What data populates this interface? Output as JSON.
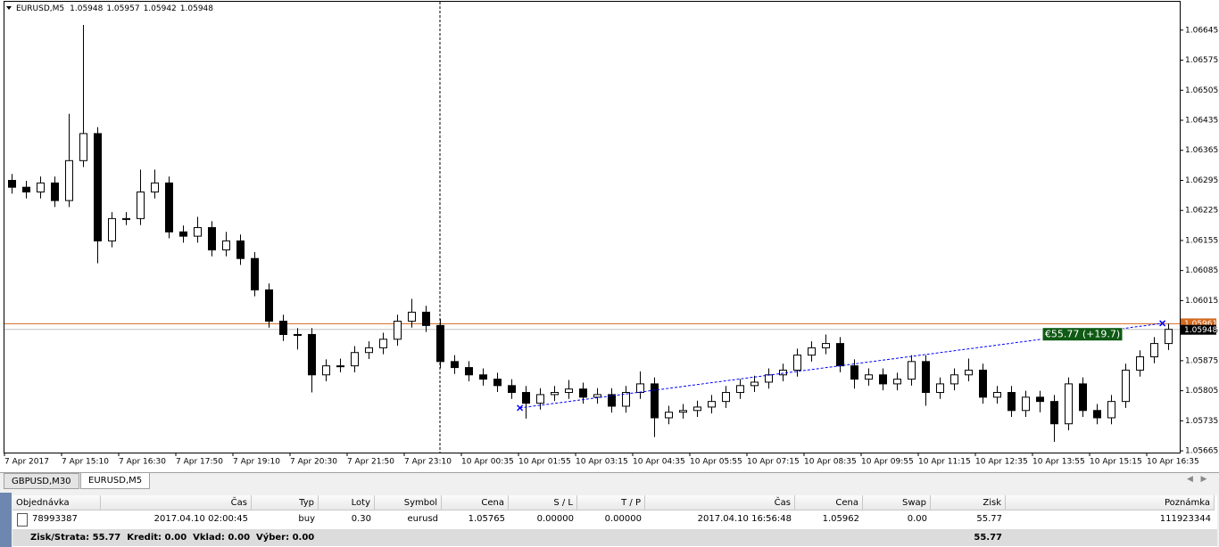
{
  "chart_data": {
    "type": "candlestick",
    "symbol": "EURUSD,M5",
    "quote": {
      "open": 1.05948,
      "high": 1.05957,
      "low": 1.05942,
      "close": 1.05948
    },
    "open": [
      1.06295,
      1.06279,
      1.06268,
      1.06289,
      1.06248,
      1.06341,
      1.06404,
      1.06154,
      1.06206,
      1.06206,
      1.06268,
      1.06289,
      1.06175,
      1.06165,
      1.06185,
      1.06133,
      1.06154,
      1.06113,
      1.0604,
      1.05967,
      1.05936,
      1.05936,
      1.05842,
      1.05863,
      1.05863,
      1.05894,
      1.05905,
      1.05925,
      1.05967,
      1.05988,
      1.05957,
      1.05873,
      1.05859,
      1.05842,
      1.05832,
      1.05817,
      1.05801,
      1.05776,
      1.05796,
      1.05801,
      1.05809,
      1.0579,
      1.05796,
      1.05769,
      1.05801,
      1.05821,
      1.05742,
      1.05755,
      1.05759,
      1.05767,
      1.0578,
      1.05801,
      1.05817,
      1.05825,
      1.05842,
      1.05853,
      1.05888,
      1.05905,
      1.05915,
      1.05863,
      1.05832,
      1.05842,
      1.05821,
      1.05832,
      1.05873,
      1.05801,
      1.05821,
      1.05842,
      1.05853,
      1.0579,
      1.05801,
      1.05759,
      1.0579,
      1.0578,
      1.05728,
      1.05821,
      1.05759,
      1.05742,
      1.0578,
      1.05853,
      1.05884,
      1.05915
    ],
    "high": [
      1.0631,
      1.06294,
      1.06304,
      1.06304,
      1.0645,
      1.06657,
      1.06419,
      1.06221,
      1.06221,
      1.0632,
      1.0632,
      1.06304,
      1.0619,
      1.0621,
      1.062,
      1.06175,
      1.06169,
      1.06128,
      1.06055,
      1.05982,
      1.05951,
      1.05951,
      1.05878,
      1.0588,
      1.05909,
      1.0592,
      1.0594,
      1.05982,
      1.06019,
      1.06003,
      1.05972,
      1.05888,
      1.05874,
      1.05857,
      1.05847,
      1.05832,
      1.05816,
      1.05811,
      1.05816,
      1.0583,
      1.05824,
      1.05811,
      1.05811,
      1.05816,
      1.0585,
      1.05836,
      1.0577,
      1.05774,
      1.05782,
      1.05795,
      1.05816,
      1.05832,
      1.0584,
      1.05857,
      1.05868,
      1.05903,
      1.0592,
      1.05936,
      1.0593,
      1.05878,
      1.05857,
      1.05857,
      1.05847,
      1.05888,
      1.05888,
      1.05836,
      1.05857,
      1.0588,
      1.05868,
      1.05816,
      1.05816,
      1.05805,
      1.05805,
      1.05795,
      1.05836,
      1.05836,
      1.05774,
      1.05795,
      1.05868,
      1.05899,
      1.0593,
      1.05961
    ],
    "low": [
      1.06264,
      1.06253,
      1.06253,
      1.06233,
      1.06233,
      1.06326,
      1.06102,
      1.06139,
      1.06191,
      1.06191,
      1.06253,
      1.0616,
      1.0615,
      1.0615,
      1.06118,
      1.06118,
      1.06098,
      1.06025,
      1.05952,
      1.05921,
      1.05901,
      1.05801,
      1.05827,
      1.05848,
      1.05848,
      1.05879,
      1.0589,
      1.0591,
      1.05952,
      1.05942,
      1.05858,
      1.05844,
      1.05827,
      1.05817,
      1.05802,
      1.05786,
      1.0574,
      1.05761,
      1.05781,
      1.05786,
      1.05775,
      1.05775,
      1.05754,
      1.05754,
      1.05786,
      1.05697,
      1.05727,
      1.0574,
      1.05744,
      1.05752,
      1.05765,
      1.05786,
      1.05802,
      1.0581,
      1.05827,
      1.05838,
      1.05873,
      1.0589,
      1.05848,
      1.0581,
      1.05817,
      1.05806,
      1.05806,
      1.05817,
      1.0577,
      1.05786,
      1.05806,
      1.05827,
      1.05775,
      1.05775,
      1.05744,
      1.05744,
      1.05755,
      1.05686,
      1.05713,
      1.05744,
      1.05727,
      1.05727,
      1.05765,
      1.05838,
      1.05869,
      1.059
    ],
    "close": [
      1.06279,
      1.06268,
      1.06289,
      1.06248,
      1.06341,
      1.06404,
      1.06154,
      1.06206,
      1.06206,
      1.06268,
      1.06289,
      1.06175,
      1.06165,
      1.06185,
      1.06133,
      1.06154,
      1.06113,
      1.0604,
      1.05967,
      1.05936,
      1.05936,
      1.05842,
      1.05863,
      1.05863,
      1.05894,
      1.05905,
      1.05925,
      1.05967,
      1.05988,
      1.05957,
      1.05873,
      1.05859,
      1.05842,
      1.05832,
      1.05817,
      1.05801,
      1.05776,
      1.05796,
      1.05801,
      1.05809,
      1.0579,
      1.05796,
      1.05769,
      1.05801,
      1.05821,
      1.05742,
      1.05755,
      1.05759,
      1.05767,
      1.0578,
      1.05801,
      1.05817,
      1.05825,
      1.05842,
      1.05853,
      1.05888,
      1.05905,
      1.05915,
      1.05863,
      1.05832,
      1.05842,
      1.05821,
      1.05832,
      1.05873,
      1.05801,
      1.05821,
      1.05842,
      1.05853,
      1.0579,
      1.05801,
      1.05759,
      1.0579,
      1.0578,
      1.05728,
      1.05821,
      1.05759,
      1.05742,
      1.0578,
      1.05853,
      1.05884,
      1.05915,
      1.05948
    ],
    "xlim": [
      0,
      82
    ],
    "xticks": [
      {
        "value": 0,
        "label": "7 Apr 2017"
      },
      {
        "value": 4,
        "label": "7 Apr 15:10"
      },
      {
        "value": 8,
        "label": "7 Apr 16:30"
      },
      {
        "value": 12,
        "label": "7 Apr 17:50"
      },
      {
        "value": 16,
        "label": "7 Apr 19:10"
      },
      {
        "value": 20,
        "label": "7 Apr 20:30"
      },
      {
        "value": 24,
        "label": "7 Apr 21:50"
      },
      {
        "value": 28,
        "label": "7 Apr 23:10"
      },
      {
        "value": 32,
        "label": "10 Apr 00:35"
      },
      {
        "value": 36,
        "label": "10 Apr 01:55"
      },
      {
        "value": 40,
        "label": "10 Apr 03:15"
      },
      {
        "value": 44,
        "label": "10 Apr 04:35"
      },
      {
        "value": 48,
        "label": "10 Apr 05:55"
      },
      {
        "value": 52,
        "label": "10 Apr 07:15"
      },
      {
        "value": 56,
        "label": "10 Apr 08:35"
      },
      {
        "value": 60,
        "label": "10 Apr 09:55"
      },
      {
        "value": 64,
        "label": "10 Apr 11:15"
      },
      {
        "value": 68,
        "label": "10 Apr 12:35"
      },
      {
        "value": 72,
        "label": "10 Apr 13:55"
      },
      {
        "value": 76,
        "label": "10 Apr 15:15"
      },
      {
        "value": 80,
        "label": "10 Apr 16:35"
      }
    ],
    "ylim": [
      1.05661,
      1.06711
    ],
    "yticks": [
      1.06645,
      1.06575,
      1.06505,
      1.06435,
      1.06365,
      1.06295,
      1.06225,
      1.06155,
      1.06085,
      1.06015,
      1.05945,
      1.05875,
      1.05805,
      1.05735,
      1.05665
    ],
    "grid": false,
    "up_color": "#ffffff",
    "down_color": "#000000",
    "bid": 1.05948,
    "ask": 1.05961,
    "trade": {
      "open_x": 36.1,
      "open_price": 1.05765,
      "close_x": 81.1,
      "close_price": 1.05962,
      "label": "€55.77 (+19.7)",
      "color": "#0000ff"
    }
  },
  "tabs": [
    "GBPUSD,M30",
    "EURUSD,M5"
  ],
  "table": {
    "columns": [
      "Objednávka",
      "Čas",
      "Typ",
      "Loty",
      "Symbol",
      "Cena",
      "S / L",
      "T / P",
      "Čas",
      "Cena",
      "Swap",
      "Zisk",
      "Poznámka"
    ],
    "rows": [
      [
        "78993387",
        "2017.04.10 02:00:45",
        "buy",
        "0.30",
        "eurusd",
        "1.05765",
        "0.00000",
        "0.00000",
        "2017.04.10 16:56:48",
        "1.05962",
        "0.00",
        "55.77",
        "111923344"
      ]
    ]
  },
  "footer": {
    "summary": "Zisk/Strata: 55.77  Kredit: 0.00  Vklad: 0.00  Výber: 0.00",
    "total": "55.77"
  }
}
